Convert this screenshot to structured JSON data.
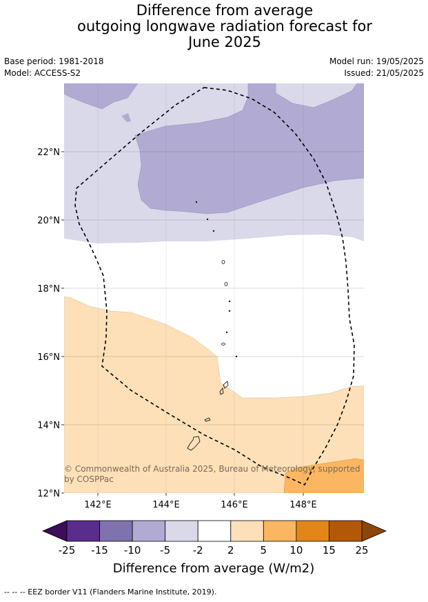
{
  "title": {
    "line1": "Difference from average",
    "line2": "outgoing longwave radiation forecast for",
    "line3": "June 2025"
  },
  "meta": {
    "base_period": "Base period: 1981-2018",
    "model": "Model: ACCESS-S2",
    "model_run": "Model run: 19/05/2025",
    "issued": "Issued: 21/05/2025"
  },
  "map": {
    "latitude_ticks": [
      "22°N",
      "20°N",
      "18°N",
      "16°N",
      "14°N",
      "12°N"
    ],
    "longitude_ticks": [
      "142°E",
      "144°E",
      "146°E",
      "148°E"
    ],
    "copyright": "© Commonwealth of Australia 2025, Bureau of Meteorology, supported by COSPPac",
    "copyright_line1": "© Commonwealth of Australia 2025, Bureau of Meteorology, supported",
    "copyright_line2": "by COSPPac"
  },
  "colorbar": {
    "tick_labels": [
      "-25",
      "-15",
      "-10",
      "-5",
      "-2",
      "2",
      "5",
      "10",
      "15",
      "25"
    ],
    "colors": [
      "#3d0c5a",
      "#5a2c8c",
      "#7f72ae",
      "#b1abd3",
      "#d9d9ea",
      "#ffffff",
      "#fde0b8",
      "#fbb661",
      "#e28618",
      "#b35806",
      "#8c460a"
    ],
    "label": "Difference from average (W/m2)"
  },
  "footer": {
    "eez_note": "--  --  -- EEZ border V11 (Flanders Marine Institute, 2019)."
  }
}
